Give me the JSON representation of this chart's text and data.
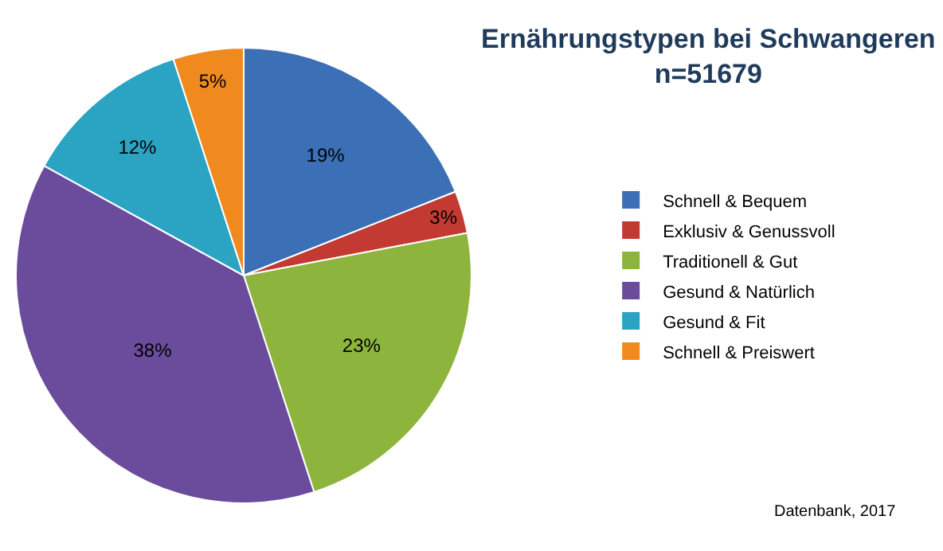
{
  "chart_data": {
    "type": "pie",
    "title": "Ernährungstypen bei Schwangeren",
    "subtitle": "n=51679",
    "categories": [
      "Schnell & Bequem",
      "Exklusiv & Genussvoll",
      "Traditionell & Gut",
      "Gesund & Natürlich",
      "Gesund & Fit",
      "Schnell & Preiswert"
    ],
    "values": [
      19,
      3,
      23,
      38,
      12,
      5
    ],
    "value_labels": [
      "19%",
      "3%",
      "23%",
      "38%",
      "12%",
      "5%"
    ],
    "colors": [
      "#3b6fb6",
      "#c33a32",
      "#8db43c",
      "#6b4b9c",
      "#2ba3c2",
      "#f08a1f"
    ],
    "legend": "right",
    "annotations": [
      "Datenbank, 2017"
    ]
  }
}
